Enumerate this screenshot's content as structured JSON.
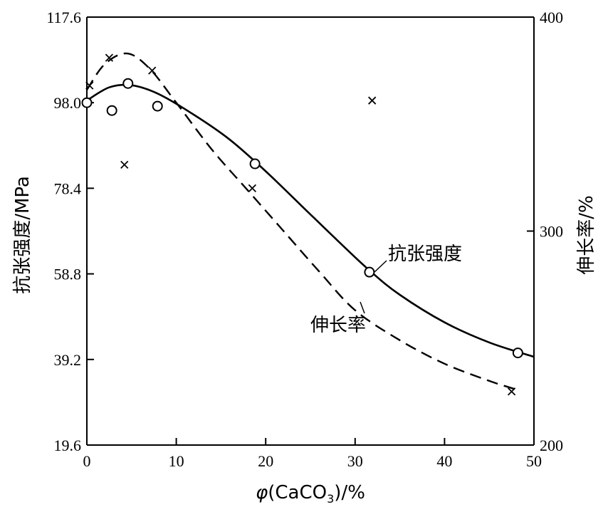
{
  "chart_data": {
    "type": "scatter",
    "x_axis": {
      "label_symbol": "φ",
      "label_main": "(CaCO",
      "label_sub": "3",
      "label_tail": ")/%",
      "range": [
        0,
        50
      ],
      "ticks": [
        0,
        10,
        20,
        30,
        40,
        50
      ],
      "tick_labels": [
        "0",
        "10",
        "20",
        "30",
        "40",
        "50"
      ]
    },
    "y_left": {
      "label": "抗张强度/MPa",
      "range": [
        19.6,
        117.6
      ],
      "ticks": [
        19.6,
        39.2,
        58.8,
        78.4,
        98.0,
        117.6
      ],
      "tick_labels": [
        "19.6",
        "39.2",
        "58.8",
        "78.4",
        "98.0",
        "117.6"
      ]
    },
    "y_right": {
      "label": "伸长率/%",
      "range": [
        200,
        400
      ],
      "ticks": [
        200,
        300,
        400
      ],
      "tick_labels": [
        "200",
        "300",
        "400"
      ]
    },
    "grid": false,
    "legend": "none",
    "series": [
      {
        "name": "抗张强度",
        "axis": "left",
        "marker": "circle",
        "line_style": "solid",
        "points": [
          [
            0,
            98.0
          ],
          [
            2.8,
            96.2
          ],
          [
            4.6,
            102.4
          ],
          [
            7.9,
            97.2
          ],
          [
            18.8,
            84.0
          ],
          [
            31.6,
            59.2
          ],
          [
            48.2,
            40.7
          ]
        ],
        "curve": [
          [
            0,
            98.5
          ],
          [
            2.5,
            101.5
          ],
          [
            5,
            102.0
          ],
          [
            8,
            100.0
          ],
          [
            12,
            95.2
          ],
          [
            16,
            89.5
          ],
          [
            20,
            82.3
          ],
          [
            24,
            74.4
          ],
          [
            28,
            66.5
          ],
          [
            31.6,
            59.6
          ],
          [
            35,
            54.0
          ],
          [
            40,
            47.7
          ],
          [
            45,
            43.1
          ],
          [
            50,
            39.8
          ]
        ]
      },
      {
        "name": "伸长率",
        "axis": "right",
        "marker": "x",
        "line_style": "dashed",
        "points": [
          [
            0.3,
            368
          ],
          [
            2.5,
            381
          ],
          [
            4.2,
            331
          ],
          [
            7.3,
            375
          ],
          [
            18.5,
            320
          ],
          [
            31.9,
            361
          ],
          [
            47.5,
            225
          ]
        ],
        "curve": [
          [
            0,
            366
          ],
          [
            2,
            378
          ],
          [
            4.5,
            383
          ],
          [
            7,
            376
          ],
          [
            10,
            360
          ],
          [
            14,
            338
          ],
          [
            18,
            319
          ],
          [
            22,
            300
          ],
          [
            26,
            281
          ],
          [
            30,
            263
          ],
          [
            35,
            249
          ],
          [
            40,
            238
          ],
          [
            45,
            230
          ],
          [
            48,
            226
          ]
        ]
      }
    ],
    "annotations": [
      "抗张强度",
      "伸长率"
    ]
  }
}
